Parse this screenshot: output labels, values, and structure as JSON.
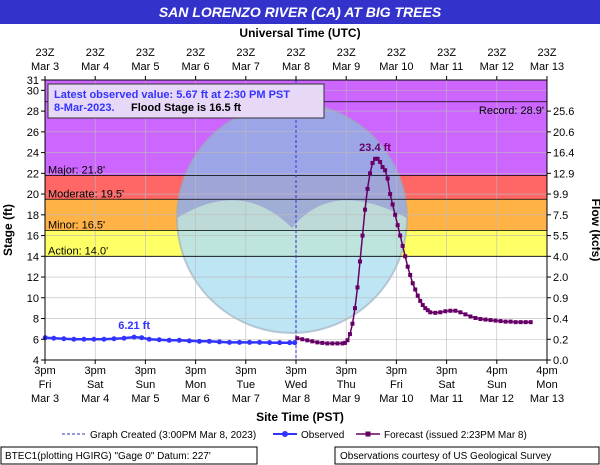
{
  "chart_data": {
    "type": "line",
    "title": "SAN LORENZO RIVER (CA) AT BIG TREES",
    "top_axis_label": "Universal Time (UTC)",
    "bottom_axis_label": "Site Time (PST)",
    "ylabel": "Stage (ft)",
    "ylabel_right": "Flow (kcfs)",
    "x_range_days": [
      3.625,
      13.625
    ],
    "ylim": [
      4,
      31
    ],
    "y_ticks": [
      4,
      6,
      8,
      10,
      12,
      14,
      16,
      18,
      20,
      22,
      24,
      26,
      28,
      30,
      31
    ],
    "right_ticks": [
      {
        "stage": 4,
        "label": "0.0"
      },
      {
        "stage": 6,
        "label": "0.2"
      },
      {
        "stage": 8,
        "label": "0.4"
      },
      {
        "stage": 10,
        "label": "0.9"
      },
      {
        "stage": 12,
        "label": "2.0"
      },
      {
        "stage": 14,
        "label": "4.0"
      },
      {
        "stage": 16,
        "label": "5.5"
      },
      {
        "stage": 18,
        "label": "7.5"
      },
      {
        "stage": 20,
        "label": "9.9"
      },
      {
        "stage": 22,
        "label": "12.9"
      },
      {
        "stage": 24,
        "label": "16.4"
      },
      {
        "stage": 26,
        "label": "20.6"
      },
      {
        "stage": 28,
        "label": "25.6"
      }
    ],
    "top_ticks": [
      {
        "line1": "23Z",
        "line2": "Mar  3"
      },
      {
        "line1": "23Z",
        "line2": "Mar  4"
      },
      {
        "line1": "23Z",
        "line2": "Mar  5"
      },
      {
        "line1": "23Z",
        "line2": "Mar  6"
      },
      {
        "line1": "23Z",
        "line2": "Mar  7"
      },
      {
        "line1": "23Z",
        "line2": "Mar  8"
      },
      {
        "line1": "23Z",
        "line2": "Mar  9"
      },
      {
        "line1": "23Z",
        "line2": "Mar 10"
      },
      {
        "line1": "23Z",
        "line2": "Mar 11"
      },
      {
        "line1": "23Z",
        "line2": "Mar 12"
      },
      {
        "line1": "23Z",
        "line2": "Mar 13"
      }
    ],
    "bottom_ticks": [
      {
        "line1": "3pm",
        "line2": "Fri",
        "line3": "Mar 3"
      },
      {
        "line1": "3pm",
        "line2": "Sat",
        "line3": "Mar 4"
      },
      {
        "line1": "3pm",
        "line2": "Sun",
        "line3": "Mar 5"
      },
      {
        "line1": "3pm",
        "line2": "Mon",
        "line3": "Mar 6"
      },
      {
        "line1": "3pm",
        "line2": "Tue",
        "line3": "Mar 7"
      },
      {
        "line1": "3pm",
        "line2": "Wed",
        "line3": "Mar 8"
      },
      {
        "line1": "3pm",
        "line2": "Thu",
        "line3": "Mar 9"
      },
      {
        "line1": "3pm",
        "line2": "Fri",
        "line3": "Mar 10"
      },
      {
        "line1": "3pm",
        "line2": "Sat",
        "line3": "Mar 11"
      },
      {
        "line1": "4pm",
        "line2": "Sun",
        "line3": "Mar 12"
      },
      {
        "line1": "4pm",
        "line2": "Mon",
        "line3": "Mar 13"
      }
    ],
    "flood_categories": [
      {
        "name": "Record",
        "label": "Record: 28.9'",
        "value": 28.9,
        "color": "#cc66ff"
      },
      {
        "name": "Major",
        "label": "Major: 21.8'",
        "value": 21.8,
        "color": "#cc66ff"
      },
      {
        "name": "Moderate",
        "label": "Moderate: 19.5'",
        "value": 19.5,
        "color": "#ff6666"
      },
      {
        "name": "Minor",
        "label": "Minor: 16.5'",
        "value": 16.5,
        "color": "#ffb347"
      },
      {
        "name": "Action",
        "label": "Action: 14.0'",
        "value": 14.0,
        "color": "#ffff66"
      }
    ],
    "graph_created_day": 8.625,
    "infobox": {
      "line1": "Latest observed value: 5.67 ft at 2:30 PM PST",
      "line2a": "8-Mar-2023.",
      "line2b": "Flood Stage is 16.5 ft"
    },
    "series": [
      {
        "name": "Observed",
        "color": "#3333ff",
        "points": [
          [
            3.63,
            6.15
          ],
          [
            3.8,
            6.1
          ],
          [
            4.0,
            6.05
          ],
          [
            4.2,
            6.0
          ],
          [
            4.4,
            6.0
          ],
          [
            4.6,
            6.0
          ],
          [
            4.8,
            6.0
          ],
          [
            5.0,
            6.05
          ],
          [
            5.2,
            6.1
          ],
          [
            5.4,
            6.21
          ],
          [
            5.55,
            6.15
          ],
          [
            5.7,
            6.0
          ],
          [
            5.9,
            5.95
          ],
          [
            6.1,
            5.9
          ],
          [
            6.3,
            5.9
          ],
          [
            6.5,
            5.85
          ],
          [
            6.7,
            5.8
          ],
          [
            6.9,
            5.8
          ],
          [
            7.1,
            5.75
          ],
          [
            7.3,
            5.7
          ],
          [
            7.5,
            5.7
          ],
          [
            7.7,
            5.7
          ],
          [
            7.9,
            5.7
          ],
          [
            8.1,
            5.68
          ],
          [
            8.3,
            5.67
          ],
          [
            8.5,
            5.67
          ],
          [
            8.6,
            5.67
          ]
        ]
      },
      {
        "name": "Forecast",
        "color": "#660066",
        "points": [
          [
            8.65,
            6.1
          ],
          [
            8.75,
            6.0
          ],
          [
            8.85,
            5.9
          ],
          [
            8.95,
            5.8
          ],
          [
            9.05,
            5.7
          ],
          [
            9.15,
            5.65
          ],
          [
            9.25,
            5.6
          ],
          [
            9.35,
            5.6
          ],
          [
            9.45,
            5.6
          ],
          [
            9.55,
            5.6
          ],
          [
            9.6,
            5.65
          ],
          [
            9.65,
            5.9
          ],
          [
            9.7,
            6.5
          ],
          [
            9.75,
            7.5
          ],
          [
            9.8,
            9.0
          ],
          [
            9.85,
            11.0
          ],
          [
            9.9,
            13.5
          ],
          [
            9.95,
            16.0
          ],
          [
            10.0,
            18.5
          ],
          [
            10.05,
            20.5
          ],
          [
            10.1,
            22.0
          ],
          [
            10.15,
            23.0
          ],
          [
            10.2,
            23.4
          ],
          [
            10.25,
            23.4
          ],
          [
            10.3,
            23.1
          ],
          [
            10.35,
            22.6
          ],
          [
            10.4,
            22.3
          ],
          [
            10.45,
            21.5
          ],
          [
            10.5,
            20.0
          ],
          [
            10.55,
            19.0
          ],
          [
            10.6,
            18.0
          ],
          [
            10.65,
            17.0
          ],
          [
            10.7,
            16.0
          ],
          [
            10.75,
            15.0
          ],
          [
            10.8,
            14.0
          ],
          [
            10.85,
            13.0
          ],
          [
            10.9,
            12.2
          ],
          [
            10.95,
            11.4
          ],
          [
            11.0,
            10.8
          ],
          [
            11.05,
            10.2
          ],
          [
            11.1,
            9.7
          ],
          [
            11.15,
            9.3
          ],
          [
            11.2,
            9.0
          ],
          [
            11.25,
            8.8
          ],
          [
            11.3,
            8.6
          ],
          [
            11.4,
            8.55
          ],
          [
            11.5,
            8.6
          ],
          [
            11.6,
            8.7
          ],
          [
            11.7,
            8.75
          ],
          [
            11.8,
            8.75
          ],
          [
            11.9,
            8.6
          ],
          [
            12.0,
            8.4
          ],
          [
            12.1,
            8.2
          ],
          [
            12.2,
            8.05
          ],
          [
            12.3,
            7.95
          ],
          [
            12.4,
            7.9
          ],
          [
            12.5,
            7.85
          ],
          [
            12.6,
            7.8
          ],
          [
            12.7,
            7.75
          ],
          [
            12.8,
            7.7
          ],
          [
            12.9,
            7.7
          ],
          [
            13.0,
            7.65
          ],
          [
            13.1,
            7.65
          ],
          [
            13.2,
            7.65
          ],
          [
            13.3,
            7.65
          ]
        ]
      }
    ],
    "annotations": [
      {
        "text": "6.21 ft",
        "day": 5.4,
        "stage": 6.21,
        "color": "#3333ff"
      },
      {
        "text": "23.4 ft",
        "day": 10.2,
        "stage": 23.4,
        "color": "#660066"
      }
    ],
    "legend": [
      {
        "name": "graph-created",
        "label": "Graph Created (3:00PM Mar 8, 2023)"
      },
      {
        "name": "observed",
        "label": "Observed"
      },
      {
        "name": "forecast",
        "label": "Forecast (issued 2:23PM Mar 8)"
      }
    ]
  },
  "footer": {
    "left": "BTEC1(plotting HGIRG) \"Gage 0\" Datum: 227'",
    "right": "Observations courtesy of US Geological Survey"
  }
}
